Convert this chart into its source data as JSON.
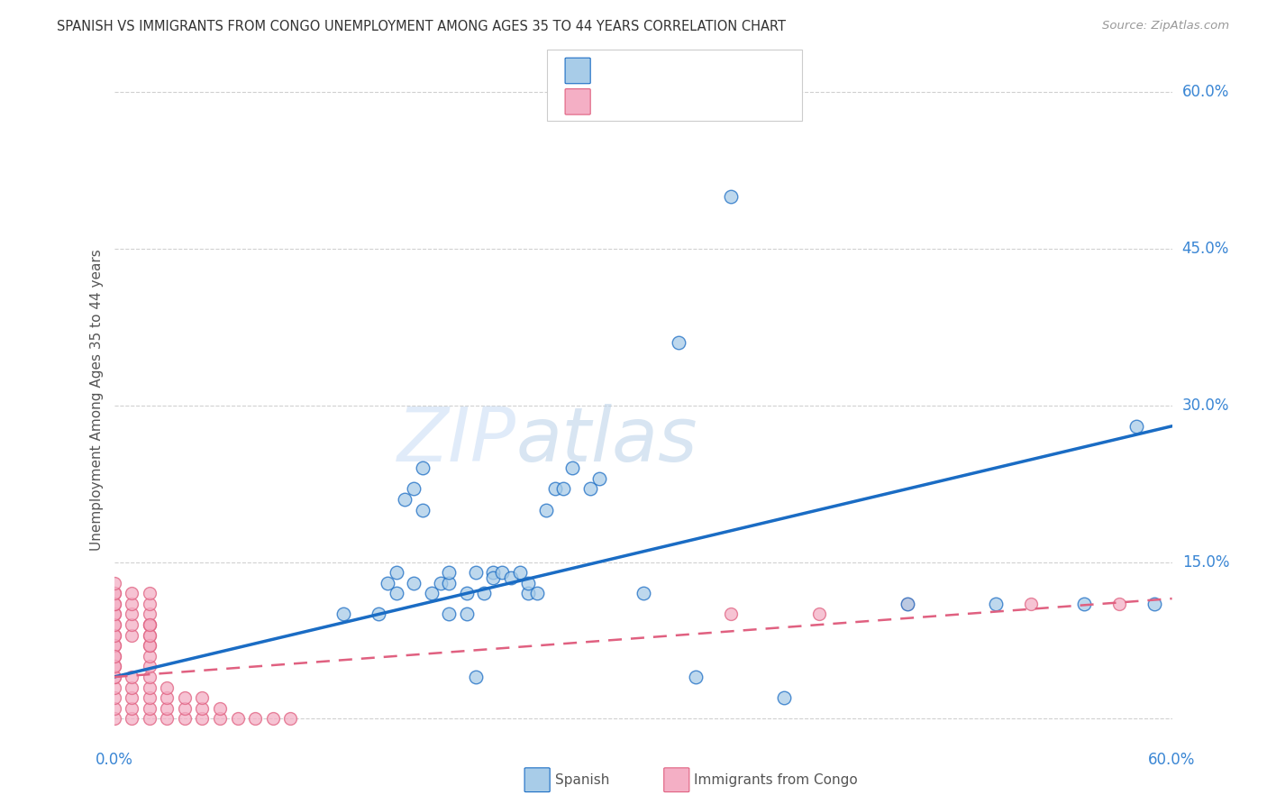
{
  "title": "SPANISH VS IMMIGRANTS FROM CONGO UNEMPLOYMENT AMONG AGES 35 TO 44 YEARS CORRELATION CHART",
  "source": "Source: ZipAtlas.com",
  "ylabel": "Unemployment Among Ages 35 to 44 years",
  "xmin": 0.0,
  "xmax": 0.6,
  "ymin": -0.02,
  "ymax": 0.63,
  "spanish_color": "#a8cce8",
  "congo_color": "#f4afc5",
  "spanish_trend_color": "#1a6cc4",
  "congo_trend_color": "#e06080",
  "watermark_zip": "ZIP",
  "watermark_atlas": "atlas",
  "spanish_x": [
    0.13,
    0.155,
    0.16,
    0.16,
    0.17,
    0.175,
    0.18,
    0.185,
    0.19,
    0.19,
    0.2,
    0.205,
    0.21,
    0.215,
    0.215,
    0.22,
    0.225,
    0.23,
    0.235,
    0.235,
    0.24,
    0.245,
    0.25,
    0.255,
    0.26,
    0.27,
    0.275,
    0.3,
    0.32,
    0.35,
    0.15,
    0.165,
    0.17,
    0.175,
    0.19,
    0.2,
    0.205,
    0.33,
    0.38,
    0.45,
    0.5,
    0.55,
    0.58,
    0.59
  ],
  "spanish_y": [
    0.1,
    0.13,
    0.12,
    0.14,
    0.13,
    0.2,
    0.12,
    0.13,
    0.13,
    0.14,
    0.12,
    0.14,
    0.12,
    0.14,
    0.135,
    0.14,
    0.135,
    0.14,
    0.12,
    0.13,
    0.12,
    0.2,
    0.22,
    0.22,
    0.24,
    0.22,
    0.23,
    0.12,
    0.36,
    0.5,
    0.1,
    0.21,
    0.22,
    0.24,
    0.1,
    0.1,
    0.04,
    0.04,
    0.02,
    0.11,
    0.11,
    0.11,
    0.28,
    0.11
  ],
  "congo_x": [
    0.0,
    0.0,
    0.0,
    0.0,
    0.0,
    0.0,
    0.0,
    0.0,
    0.0,
    0.0,
    0.0,
    0.01,
    0.01,
    0.01,
    0.01,
    0.01,
    0.02,
    0.02,
    0.02,
    0.02,
    0.02,
    0.02,
    0.02,
    0.02,
    0.02,
    0.02,
    0.03,
    0.03,
    0.03,
    0.03,
    0.04,
    0.04,
    0.04,
    0.05,
    0.05,
    0.05,
    0.06,
    0.06,
    0.07,
    0.08,
    0.09,
    0.1,
    0.35,
    0.4,
    0.45,
    0.52,
    0.57,
    0.0,
    0.0,
    0.0,
    0.0,
    0.0,
    0.0,
    0.0,
    0.0,
    0.0,
    0.0,
    0.0,
    0.0,
    0.01,
    0.01,
    0.01,
    0.01,
    0.01,
    0.02,
    0.02,
    0.02,
    0.02,
    0.02,
    0.02,
    0.02
  ],
  "congo_y": [
    0.0,
    0.01,
    0.02,
    0.03,
    0.04,
    0.05,
    0.06,
    0.07,
    0.08,
    0.09,
    0.1,
    0.0,
    0.01,
    0.02,
    0.03,
    0.04,
    0.0,
    0.01,
    0.02,
    0.03,
    0.04,
    0.05,
    0.06,
    0.07,
    0.08,
    0.09,
    0.0,
    0.01,
    0.02,
    0.03,
    0.0,
    0.01,
    0.02,
    0.0,
    0.01,
    0.02,
    0.0,
    0.01,
    0.0,
    0.0,
    0.0,
    0.0,
    0.1,
    0.1,
    0.11,
    0.11,
    0.11,
    0.07,
    0.08,
    0.09,
    0.1,
    0.11,
    0.12,
    0.04,
    0.05,
    0.06,
    0.11,
    0.12,
    0.13,
    0.08,
    0.09,
    0.1,
    0.11,
    0.12,
    0.09,
    0.1,
    0.11,
    0.12,
    0.07,
    0.08,
    0.09
  ],
  "sp_trend_x0": 0.0,
  "sp_trend_y0": 0.04,
  "sp_trend_x1": 0.6,
  "sp_trend_y1": 0.28,
  "cg_trend_x0": 0.0,
  "cg_trend_y0": 0.04,
  "cg_trend_x1": 0.6,
  "cg_trend_y1": 0.115
}
